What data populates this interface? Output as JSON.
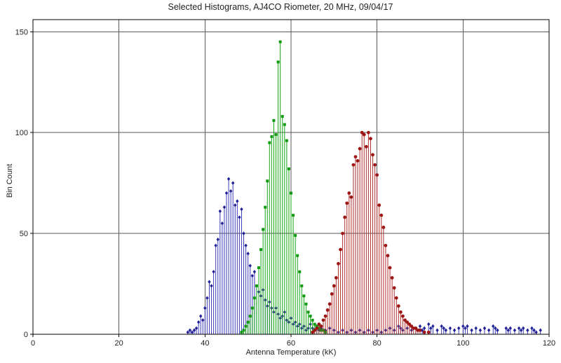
{
  "chart_data": {
    "type": "bar",
    "style": "stem-histogram",
    "title": "Selected Histograms, AJ4CO Riometer, 20 MHz, 09/04/17",
    "xlabel": "Antenna Temperature (kK)",
    "ylabel": "Bin Count",
    "xlim": [
      0,
      120
    ],
    "ylim": [
      0,
      156
    ],
    "x_ticks": [
      0,
      20,
      40,
      60,
      80,
      100,
      120
    ],
    "y_ticks": [
      0,
      50,
      100,
      150
    ],
    "x_gridlines": [
      20,
      40,
      60,
      80,
      100
    ],
    "y_gridlines": [
      50,
      100,
      150
    ],
    "grid": true,
    "legend": "none",
    "colors": {
      "background": "#ffffff",
      "border": "#000000",
      "grid": "#5a5a5a",
      "text": "#222222"
    },
    "series": [
      {
        "name": "blue-histogram",
        "marker": "diamond",
        "stem_color": "#3b3bb8",
        "marker_color": "#1f1f96",
        "points": [
          [
            36,
            1
          ],
          [
            36.5,
            2
          ],
          [
            37,
            1
          ],
          [
            37.5,
            2
          ],
          [
            38,
            3
          ],
          [
            38.5,
            6
          ],
          [
            39,
            9
          ],
          [
            39.5,
            7
          ],
          [
            40,
            13
          ],
          [
            40.5,
            18
          ],
          [
            41,
            26
          ],
          [
            41.5,
            24
          ],
          [
            42,
            31
          ],
          [
            42.5,
            44
          ],
          [
            43,
            47
          ],
          [
            43.5,
            61
          ],
          [
            44,
            55
          ],
          [
            44.5,
            63
          ],
          [
            45,
            70
          ],
          [
            45.5,
            77
          ],
          [
            46,
            71
          ],
          [
            46.5,
            75
          ],
          [
            47,
            64
          ],
          [
            47.5,
            66
          ],
          [
            48,
            58
          ],
          [
            48.5,
            62
          ],
          [
            49,
            50
          ],
          [
            49.5,
            44
          ],
          [
            50,
            40
          ],
          [
            50.5,
            34
          ],
          [
            51,
            29
          ],
          [
            51.5,
            31
          ],
          [
            52,
            24
          ],
          [
            52.5,
            21
          ],
          [
            53,
            19
          ],
          [
            53.5,
            22
          ],
          [
            54,
            17
          ],
          [
            54.5,
            14
          ],
          [
            55,
            16
          ],
          [
            55.5,
            13
          ],
          [
            56,
            11
          ],
          [
            56.5,
            13
          ],
          [
            57,
            10
          ],
          [
            57.5,
            8
          ],
          [
            58,
            9
          ],
          [
            58.5,
            11
          ],
          [
            59,
            7
          ],
          [
            59.5,
            6
          ],
          [
            60,
            8
          ],
          [
            60.5,
            5
          ],
          [
            61,
            6
          ],
          [
            61.5,
            4
          ],
          [
            62,
            5
          ],
          [
            62.5,
            3
          ],
          [
            63,
            4
          ],
          [
            63.5,
            2
          ],
          [
            64,
            3
          ],
          [
            64.5,
            5
          ],
          [
            65,
            3
          ],
          [
            66,
            4
          ],
          [
            66.5,
            2
          ],
          [
            67,
            3
          ],
          [
            68,
            2
          ],
          [
            69,
            3
          ],
          [
            70,
            2
          ],
          [
            71,
            1
          ],
          [
            72,
            2
          ],
          [
            73,
            1
          ],
          [
            74,
            2
          ],
          [
            75,
            1
          ],
          [
            76,
            2
          ],
          [
            77,
            1
          ],
          [
            78,
            2
          ],
          [
            79,
            1
          ],
          [
            80,
            2
          ],
          [
            81,
            1
          ],
          [
            82,
            2
          ],
          [
            83,
            3
          ],
          [
            84,
            2
          ],
          [
            85,
            4
          ],
          [
            85.5,
            3
          ],
          [
            86,
            2
          ],
          [
            87,
            3
          ],
          [
            88,
            2
          ],
          [
            89,
            3
          ],
          [
            90,
            4
          ],
          [
            90.5,
            2
          ],
          [
            91,
            3
          ],
          [
            92,
            5
          ],
          [
            92.5,
            3
          ],
          [
            93,
            4
          ],
          [
            94,
            2
          ],
          [
            95,
            4
          ],
          [
            95.5,
            3
          ],
          [
            96,
            2
          ],
          [
            97,
            3
          ],
          [
            98,
            2
          ],
          [
            99,
            3
          ],
          [
            100,
            4
          ],
          [
            100.5,
            3
          ],
          [
            101,
            4
          ],
          [
            102,
            2
          ],
          [
            103,
            3
          ],
          [
            104,
            2
          ],
          [
            105,
            3
          ],
          [
            106,
            2
          ],
          [
            107,
            4
          ],
          [
            107.5,
            3
          ],
          [
            108,
            2
          ],
          [
            110,
            3
          ],
          [
            110.5,
            2
          ],
          [
            111,
            3
          ],
          [
            112,
            2
          ],
          [
            113,
            3
          ],
          [
            113.5,
            2
          ],
          [
            114,
            3
          ],
          [
            115,
            2
          ],
          [
            116,
            3
          ],
          [
            116.5,
            2
          ],
          [
            117,
            1
          ],
          [
            118,
            2
          ]
        ]
      },
      {
        "name": "green-histogram",
        "marker": "square",
        "stem_color": "#17a617",
        "marker_color": "#0f9a0f",
        "points": [
          [
            48.5,
            1
          ],
          [
            49,
            2
          ],
          [
            49.5,
            4
          ],
          [
            50,
            6
          ],
          [
            50.5,
            9
          ],
          [
            51,
            13
          ],
          [
            51.5,
            18
          ],
          [
            52,
            24
          ],
          [
            52.5,
            33
          ],
          [
            53,
            42
          ],
          [
            53.5,
            52
          ],
          [
            54,
            63
          ],
          [
            54.5,
            76
          ],
          [
            55,
            95
          ],
          [
            55.5,
            98
          ],
          [
            56,
            106
          ],
          [
            56.5,
            99
          ],
          [
            57,
            135
          ],
          [
            57.5,
            145
          ],
          [
            58,
            108
          ],
          [
            58.5,
            104
          ],
          [
            59,
            96
          ],
          [
            59.5,
            82
          ],
          [
            60,
            70
          ],
          [
            60.5,
            59
          ],
          [
            61,
            49
          ],
          [
            61.5,
            39
          ],
          [
            62,
            31
          ],
          [
            62.5,
            24
          ],
          [
            63,
            19
          ],
          [
            63.5,
            15
          ],
          [
            64,
            11
          ],
          [
            64.5,
            9
          ],
          [
            65,
            7
          ],
          [
            65.5,
            5
          ],
          [
            66,
            4
          ],
          [
            66.5,
            3
          ],
          [
            67,
            2
          ],
          [
            67.5,
            2
          ],
          [
            68,
            1
          ]
        ]
      },
      {
        "name": "red-histogram",
        "marker": "circle",
        "stem_color": "#b03030",
        "marker_color": "#9c1616",
        "points": [
          [
            65,
            1
          ],
          [
            65.5,
            2
          ],
          [
            66,
            3
          ],
          [
            66.5,
            5
          ],
          [
            67,
            4
          ],
          [
            67.5,
            7
          ],
          [
            68,
            9
          ],
          [
            68.5,
            12
          ],
          [
            69,
            15
          ],
          [
            69.5,
            20
          ],
          [
            70,
            24
          ],
          [
            70.5,
            28
          ],
          [
            71,
            35
          ],
          [
            71.5,
            42
          ],
          [
            72,
            50
          ],
          [
            72.5,
            58
          ],
          [
            73,
            65
          ],
          [
            73.5,
            70
          ],
          [
            74,
            68
          ],
          [
            74.5,
            84
          ],
          [
            75,
            88
          ],
          [
            75.5,
            86
          ],
          [
            76,
            92
          ],
          [
            76.5,
            100
          ],
          [
            77,
            99
          ],
          [
            77.5,
            93
          ],
          [
            78,
            100
          ],
          [
            78.5,
            97
          ],
          [
            79,
            89
          ],
          [
            79.5,
            84
          ],
          [
            80,
            79
          ],
          [
            80.5,
            64
          ],
          [
            81,
            59
          ],
          [
            81.5,
            53
          ],
          [
            82,
            44
          ],
          [
            82.5,
            39
          ],
          [
            83,
            33
          ],
          [
            83.5,
            28
          ],
          [
            84,
            23
          ],
          [
            84.5,
            18
          ],
          [
            85,
            14
          ],
          [
            85.5,
            11
          ],
          [
            86,
            9
          ],
          [
            86.5,
            7
          ],
          [
            87,
            6
          ],
          [
            87.5,
            5
          ],
          [
            88,
            4
          ],
          [
            88.5,
            3
          ],
          [
            89,
            3
          ],
          [
            89.5,
            2
          ],
          [
            90,
            2
          ],
          [
            91,
            1
          ],
          [
            92,
            1
          ]
        ]
      }
    ]
  }
}
